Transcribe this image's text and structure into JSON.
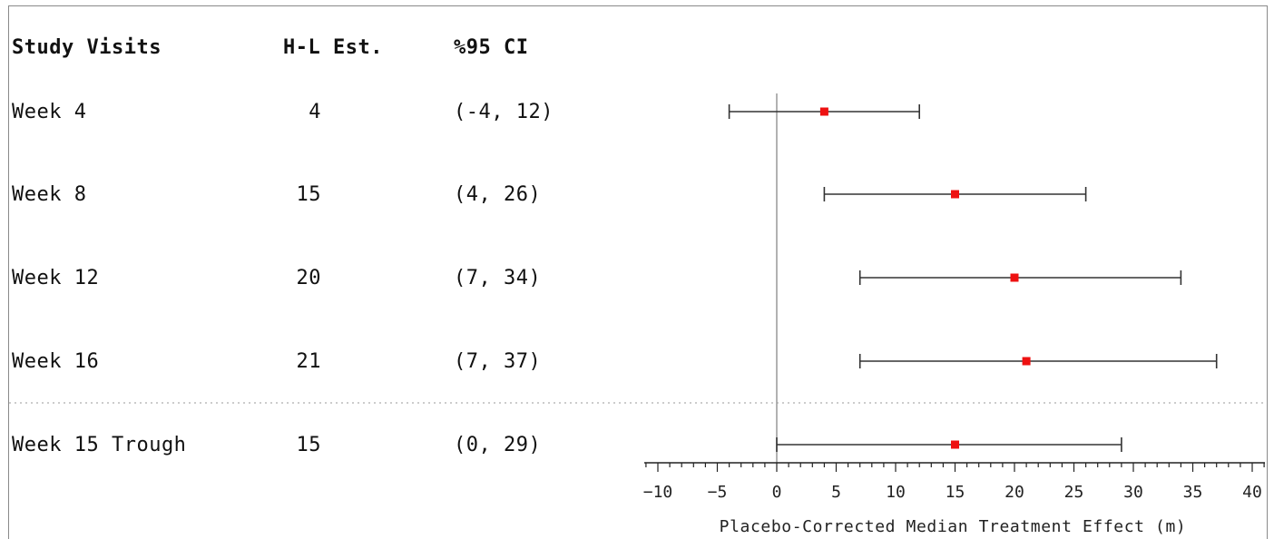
{
  "table": {
    "headers": {
      "visit": "Study Visits",
      "estimate": "H-L Est.",
      "ci": "%95 CI"
    },
    "rows": [
      {
        "visit": "Week 4",
        "estimate": "4",
        "ci": "(-4, 12)"
      },
      {
        "visit": "Week 8",
        "estimate": "15",
        "ci": "(4, 26)"
      },
      {
        "visit": "Week 12",
        "estimate": "20",
        "ci": "(7, 34)"
      },
      {
        "visit": "Week 16",
        "estimate": "21",
        "ci": "(7, 37)"
      },
      {
        "visit": "Week 15 Trough",
        "estimate": "15",
        "ci": "(0, 29)"
      }
    ]
  },
  "chart_data": {
    "type": "forest",
    "title": "",
    "xlabel": "Placebo-Corrected Median Treatment Effect (m)",
    "ylabel": "",
    "xlim": [
      -11,
      41
    ],
    "xticks": [
      -10,
      -5,
      0,
      5,
      10,
      15,
      20,
      25,
      30,
      35,
      40
    ],
    "reference_line": 0,
    "grid": false,
    "legend": "none",
    "separator_before_row": 4,
    "colors": {
      "point": "#ee1111",
      "whisker": "#333333",
      "reference": "#999999",
      "separator": "#bbbbbb"
    },
    "rows": [
      {
        "label": "Week 4",
        "estimate": 4,
        "lower": -4,
        "upper": 12
      },
      {
        "label": "Week 8",
        "estimate": 15,
        "lower": 4,
        "upper": 26
      },
      {
        "label": "Week 12",
        "estimate": 20,
        "lower": 7,
        "upper": 34
      },
      {
        "label": "Week 16",
        "estimate": 21,
        "lower": 7,
        "upper": 37
      },
      {
        "label": "Week 15 Trough",
        "estimate": 15,
        "lower": 0,
        "upper": 29
      }
    ]
  }
}
